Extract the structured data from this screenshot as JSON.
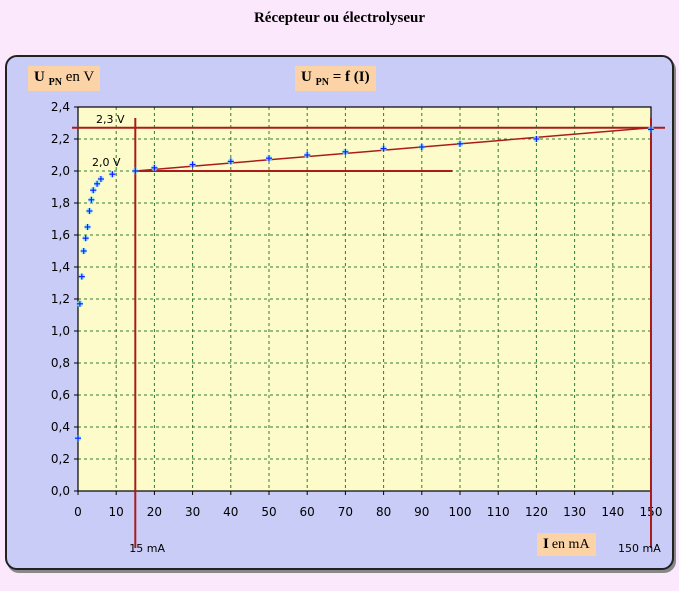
{
  "page": {
    "title": "Récepteur ou électrolyseur"
  },
  "labels": {
    "y_main": "U",
    "y_sub": "PN",
    "y_suffix": " en V",
    "t_main": "U",
    "t_sub": "PN",
    "t_suffix": " = f (I)",
    "x_main": "I",
    "x_unit": "en mA"
  },
  "colors": {
    "plot_bg": "#fdfbc9",
    "grid": "#2f7d2f",
    "red": "#aa1c1c",
    "marker": "#1a1aff",
    "marker_halo": "#79e6ff"
  },
  "chart_data": {
    "type": "scatter",
    "title": "U PN = f (I)",
    "xlabel": "I en mA",
    "ylabel": "U PN en V",
    "xlim": [
      0,
      150
    ],
    "ylim": [
      0,
      2.4
    ],
    "xticks": [
      0,
      10,
      20,
      30,
      40,
      50,
      60,
      70,
      80,
      90,
      100,
      110,
      120,
      130,
      140,
      150
    ],
    "yticks": [
      0,
      0.2,
      0.4,
      0.6,
      0.8,
      1.0,
      1.2,
      1.4,
      1.6,
      1.8,
      2.0,
      2.2,
      2.4
    ],
    "xtick_labels": [
      "0",
      "10",
      "20",
      "30",
      "40",
      "50",
      "60",
      "70",
      "80",
      "90",
      "100",
      "110",
      "120",
      "130",
      "140",
      "150"
    ],
    "ytick_labels": [
      "0,0",
      "0,2",
      "0,4",
      "0,6",
      "0,8",
      "1,0",
      "1,2",
      "1,4",
      "1,6",
      "1,8",
      "2,0",
      "2,2",
      "2,4"
    ],
    "grid": true,
    "points": [
      {
        "x": 0,
        "y": 0.33
      },
      {
        "x": 0.5,
        "y": 1.17
      },
      {
        "x": 1,
        "y": 1.34
      },
      {
        "x": 1.5,
        "y": 1.5
      },
      {
        "x": 2,
        "y": 1.58
      },
      {
        "x": 2.5,
        "y": 1.65
      },
      {
        "x": 3,
        "y": 1.75
      },
      {
        "x": 3.5,
        "y": 1.82
      },
      {
        "x": 4,
        "y": 1.88
      },
      {
        "x": 5,
        "y": 1.92
      },
      {
        "x": 6,
        "y": 1.95
      },
      {
        "x": 9,
        "y": 1.98
      },
      {
        "x": 15,
        "y": 2.0
      },
      {
        "x": 20,
        "y": 2.02
      },
      {
        "x": 30,
        "y": 2.04
      },
      {
        "x": 40,
        "y": 2.06
      },
      {
        "x": 50,
        "y": 2.08
      },
      {
        "x": 60,
        "y": 2.1
      },
      {
        "x": 70,
        "y": 2.12
      },
      {
        "x": 80,
        "y": 2.14
      },
      {
        "x": 90,
        "y": 2.15
      },
      {
        "x": 100,
        "y": 2.17
      },
      {
        "x": 120,
        "y": 2.2
      },
      {
        "x": 150,
        "y": 2.26
      }
    ],
    "trend_line": {
      "x": [
        15,
        150
      ],
      "y": [
        2.0,
        2.27
      ]
    },
    "reference_lines": [
      {
        "orientation": "horizontal",
        "value": 2.27,
        "from": -1,
        "to": 150,
        "label": "2,3 V"
      },
      {
        "orientation": "horizontal",
        "value": 2.0,
        "from": 15,
        "to": 98,
        "label": "2,0 V"
      },
      {
        "orientation": "vertical",
        "value": 15,
        "label": "15 mA"
      },
      {
        "orientation": "vertical",
        "value": 150,
        "label": "150 mA"
      }
    ]
  }
}
